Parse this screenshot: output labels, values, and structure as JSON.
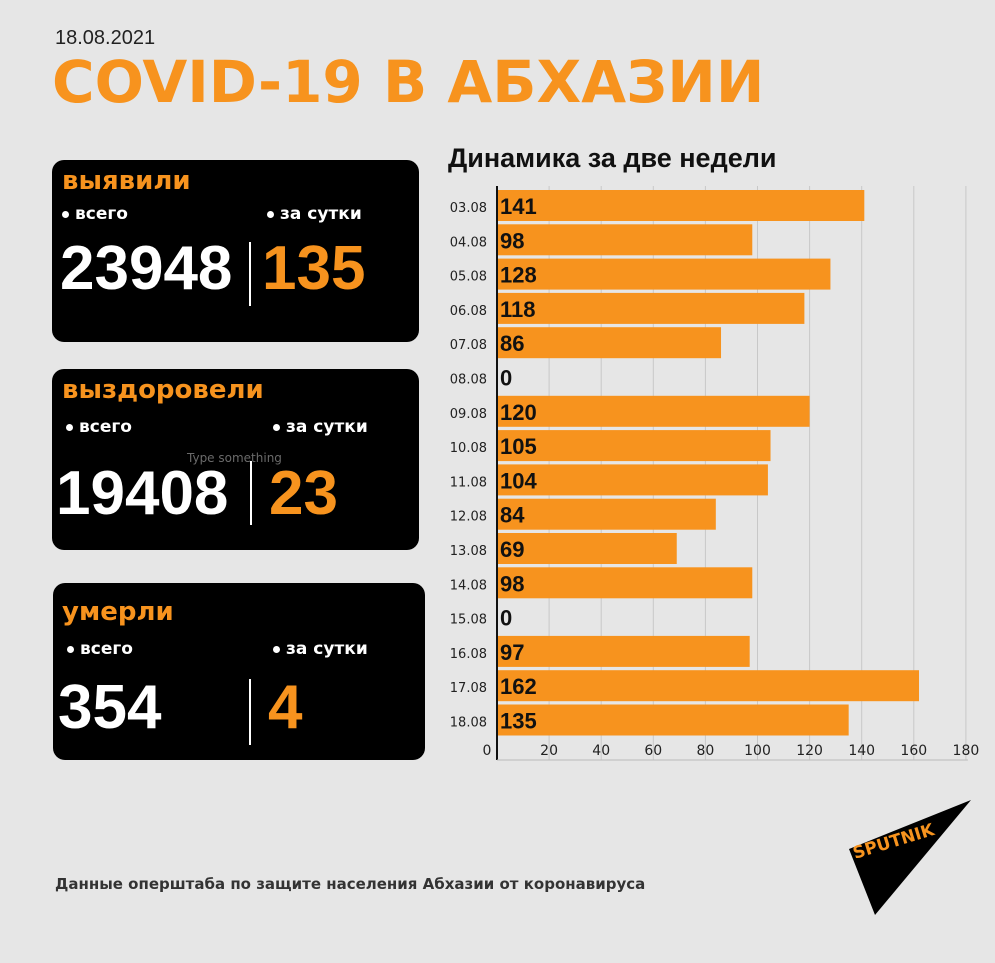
{
  "header": {
    "date": "18.08.2021",
    "title": "COVID-19 В АБХАЗИИ"
  },
  "cards": [
    {
      "title": "выявили",
      "total_label": "всего",
      "daily_label": "за сутки",
      "total": "23948",
      "daily": "135"
    },
    {
      "title": "выздоровели",
      "total_label": "всего",
      "daily_label": "за сутки",
      "total": "19408",
      "daily": "23"
    },
    {
      "title": "умерли",
      "total_label": "всего",
      "daily_label": "за сутки",
      "total": "354",
      "daily": "4"
    }
  ],
  "overlay_text": "Type something",
  "footer": "Данные оперштаба по защите населения Абхазии от коронавируса",
  "logo": {
    "text": "SPUTNIK"
  },
  "colors": {
    "accent": "#f7931e",
    "background": "#e6e6e6",
    "card": "#000000"
  },
  "chart_data": {
    "type": "bar",
    "orientation": "horizontal",
    "title": "Динамика за две недели",
    "categories": [
      "03.08",
      "04.08",
      "05.08",
      "06.08",
      "07.08",
      "08.08",
      "09.08",
      "10.08",
      "11.08",
      "12.08",
      "13.08",
      "14.08",
      "15.08",
      "16.08",
      "17.08",
      "18.08"
    ],
    "values": [
      141,
      98,
      128,
      118,
      86,
      0,
      120,
      105,
      104,
      84,
      69,
      98,
      0,
      97,
      162,
      135
    ],
    "xlim": [
      0,
      180
    ],
    "xticks": [
      0,
      20,
      40,
      60,
      80,
      100,
      120,
      140,
      160,
      180
    ],
    "grid": true,
    "bar_color": "#f7931e"
  }
}
